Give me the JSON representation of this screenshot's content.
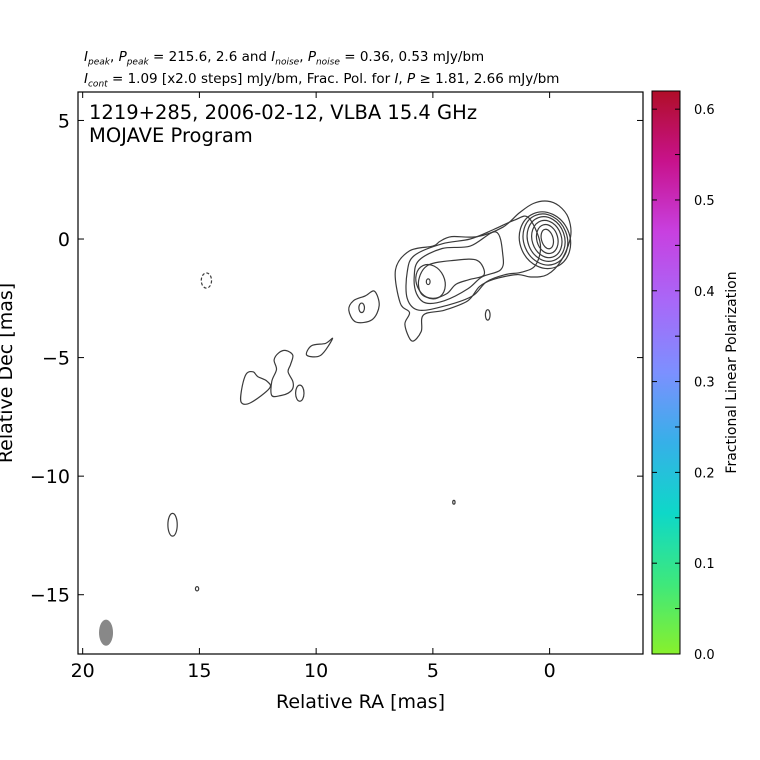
{
  "header": {
    "I_peak_label": "peak",
    "P_peak_label": "peak",
    "peak_values": "215.6, 2.6",
    "I_noise_label": "noise",
    "P_noise_label": "noise",
    "noise_values": "0.36, 0.53 mJy/bm",
    "I_cont_label": "cont",
    "cont_text": "= 1.09 [x2.0 steps] mJy/bm, Frac. Pol. for",
    "frac_threshold": "1.81, 2.66 mJy/bm"
  },
  "chart_data": {
    "type": "contour",
    "title_line1": "1219+285, 2006-02-12, VLBA 15.4 GHz",
    "title_line2": "MOJAVE Program",
    "xlabel": "Relative RA [mas]",
    "ylabel": "Relative Dec [mas]",
    "xlim": [
      20.2,
      -4.0
    ],
    "ylim": [
      -17.5,
      6.2
    ],
    "x_ticks": [
      20,
      15,
      10,
      5,
      0
    ],
    "y_ticks": [
      5,
      0,
      -5,
      -10,
      -15
    ],
    "colorbar": {
      "label": "Fractional Linear Polarization",
      "range": [
        0.0,
        0.62
      ],
      "ticks": [
        0.0,
        0.1,
        0.2,
        0.3,
        0.4,
        0.5,
        0.6
      ],
      "colors": [
        "#88f02c",
        "#3ee87c",
        "#0ed8c8",
        "#36b0e8",
        "#7c90ff",
        "#a868f8",
        "#c840e0",
        "#c8128c",
        "#b00e28"
      ]
    },
    "peak_mJy_per_beam": 215.6,
    "contour_base_mJy_per_beam": 1.09,
    "contour_step_factor": 2.0,
    "beam": {
      "x": 19.0,
      "y": -16.6,
      "major_mas": 1.1,
      "minor_mas": 0.6,
      "pa_deg": -10,
      "color": "#888888"
    },
    "core_contours": [
      {
        "x": 0.1,
        "y": 0.0,
        "ra": 0.25,
        "rd": 0.42,
        "pa": -15
      },
      {
        "x": 0.1,
        "y": 0.0,
        "ra": 0.45,
        "rd": 0.62,
        "pa": -15
      },
      {
        "x": 0.12,
        "y": 0.0,
        "ra": 0.63,
        "rd": 0.8,
        "pa": -18
      },
      {
        "x": 0.15,
        "y": 0.0,
        "ra": 0.79,
        "rd": 0.96,
        "pa": -20
      },
      {
        "x": 0.18,
        "y": -0.02,
        "ra": 0.93,
        "rd": 1.1,
        "pa": -22
      },
      {
        "x": 0.2,
        "y": -0.05,
        "ra": 1.07,
        "rd": 1.22,
        "pa": -24
      }
    ],
    "jet_contours": [
      {
        "points": [
          [
            -0.9,
            0.1
          ],
          [
            -0.8,
            0.9
          ],
          [
            -0.4,
            1.4
          ],
          [
            0.1,
            1.6
          ],
          [
            0.7,
            1.5
          ],
          [
            1.3,
            1.1
          ],
          [
            2.0,
            0.5
          ],
          [
            3.1,
            0.1
          ],
          [
            4.2,
            0.1
          ],
          [
            4.7,
            -0.1
          ],
          [
            5.0,
            -0.3
          ],
          [
            6.0,
            -0.5
          ],
          [
            6.6,
            -1.3
          ],
          [
            6.4,
            -2.7
          ],
          [
            6.0,
            -3.1
          ],
          [
            6.2,
            -3.6
          ],
          [
            5.9,
            -4.3
          ],
          [
            5.5,
            -3.9
          ],
          [
            5.4,
            -3.2
          ],
          [
            4.5,
            -3.0
          ],
          [
            3.5,
            -2.6
          ],
          [
            3.0,
            -2.0
          ],
          [
            2.4,
            -1.7
          ],
          [
            1.4,
            -1.5
          ],
          [
            0.8,
            -1.6
          ],
          [
            0.1,
            -1.5
          ],
          [
            -0.5,
            -0.9
          ]
        ]
      },
      {
        "points": [
          [
            0.9,
            0.9
          ],
          [
            1.5,
            0.8
          ],
          [
            2.4,
            0.4
          ],
          [
            3.4,
            0.0
          ],
          [
            4.6,
            -0.2
          ],
          [
            5.8,
            -0.7
          ],
          [
            6.1,
            -1.4
          ],
          [
            6.1,
            -2.5
          ],
          [
            5.6,
            -3.0
          ],
          [
            4.4,
            -2.8
          ],
          [
            3.3,
            -2.4
          ],
          [
            2.7,
            -1.8
          ],
          [
            1.9,
            -1.5
          ],
          [
            1.2,
            -1.4
          ],
          [
            0.6,
            -1.1
          ],
          [
            0.4,
            -0.2
          ]
        ]
      },
      {
        "points": [
          [
            2.3,
            0.3
          ],
          [
            3.4,
            -0.3
          ],
          [
            4.6,
            -0.4
          ],
          [
            5.6,
            -0.9
          ],
          [
            5.8,
            -1.6
          ],
          [
            5.7,
            -2.3
          ],
          [
            5.3,
            -2.7
          ],
          [
            4.5,
            -2.6
          ],
          [
            3.5,
            -2.1
          ],
          [
            2.9,
            -1.6
          ],
          [
            2.1,
            -1.3
          ],
          [
            2.0,
            -0.7
          ]
        ]
      },
      {
        "points": [
          [
            3.1,
            -0.9
          ],
          [
            4.1,
            -0.9
          ],
          [
            5.2,
            -1.1
          ],
          [
            5.6,
            -1.7
          ],
          [
            5.5,
            -2.3
          ],
          [
            5.0,
            -2.5
          ],
          [
            4.4,
            -2.3
          ],
          [
            4.0,
            -1.9
          ],
          [
            3.4,
            -1.7
          ],
          [
            2.8,
            -1.5
          ]
        ]
      }
    ],
    "ellipse_contours": [
      {
        "x": 5.1,
        "y": -1.8,
        "ra": 0.6,
        "rd": 0.75,
        "pa": -25,
        "dashed": false
      },
      {
        "x": 5.2,
        "y": -1.8,
        "ra": 0.08,
        "rd": 0.12,
        "pa": 0,
        "dashed": false
      },
      {
        "x": 8.05,
        "y": -2.9,
        "ra": 0.12,
        "rd": 0.2,
        "pa": 0,
        "dashed": false
      },
      {
        "x": 2.65,
        "y": -3.2,
        "ra": 0.1,
        "rd": 0.22,
        "pa": 0,
        "dashed": false
      },
      {
        "x": 14.7,
        "y": -1.75,
        "ra": 0.22,
        "rd": 0.32,
        "pa": 0,
        "dashed": true
      },
      {
        "x": 16.15,
        "y": -12.05,
        "ra": 0.2,
        "rd": 0.48,
        "pa": 0,
        "dashed": false
      },
      {
        "x": 15.1,
        "y": -14.75,
        "ra": 0.07,
        "rd": 0.09,
        "pa": 0,
        "dashed": false
      },
      {
        "x": 4.1,
        "y": -11.1,
        "ra": 0.05,
        "rd": 0.08,
        "pa": 0,
        "dashed": false
      },
      {
        "x": 10.7,
        "y": -6.5,
        "ra": 0.18,
        "rd": 0.34,
        "pa": 0,
        "dashed": false
      }
    ],
    "knot_contours": [
      {
        "points": [
          [
            7.5,
            -2.2
          ],
          [
            7.3,
            -2.8
          ],
          [
            7.6,
            -3.4
          ],
          [
            8.3,
            -3.5
          ],
          [
            8.6,
            -3.0
          ],
          [
            8.4,
            -2.6
          ],
          [
            7.9,
            -2.4
          ]
        ]
      },
      {
        "points": [
          [
            9.6,
            -4.4
          ],
          [
            9.3,
            -4.2
          ],
          [
            9.8,
            -4.9
          ],
          [
            10.4,
            -4.9
          ],
          [
            10.2,
            -4.5
          ]
        ]
      },
      {
        "points": [
          [
            11.3,
            -4.7
          ],
          [
            11.0,
            -4.9
          ],
          [
            11.1,
            -5.3
          ],
          [
            11.2,
            -5.6
          ],
          [
            11.0,
            -6.0
          ],
          [
            11.0,
            -6.3
          ],
          [
            11.2,
            -6.5
          ],
          [
            11.5,
            -6.6
          ],
          [
            11.9,
            -6.6
          ],
          [
            11.9,
            -6.0
          ],
          [
            11.7,
            -5.5
          ],
          [
            11.8,
            -5.1
          ],
          [
            11.6,
            -4.8
          ]
        ]
      },
      {
        "points": [
          [
            12.0,
            -6.3
          ],
          [
            12.8,
            -6.9
          ],
          [
            13.2,
            -6.9
          ],
          [
            13.2,
            -6.4
          ],
          [
            13.0,
            -5.7
          ],
          [
            12.7,
            -5.6
          ],
          [
            12.5,
            -5.8
          ],
          [
            12.1,
            -6.0
          ]
        ]
      }
    ]
  }
}
